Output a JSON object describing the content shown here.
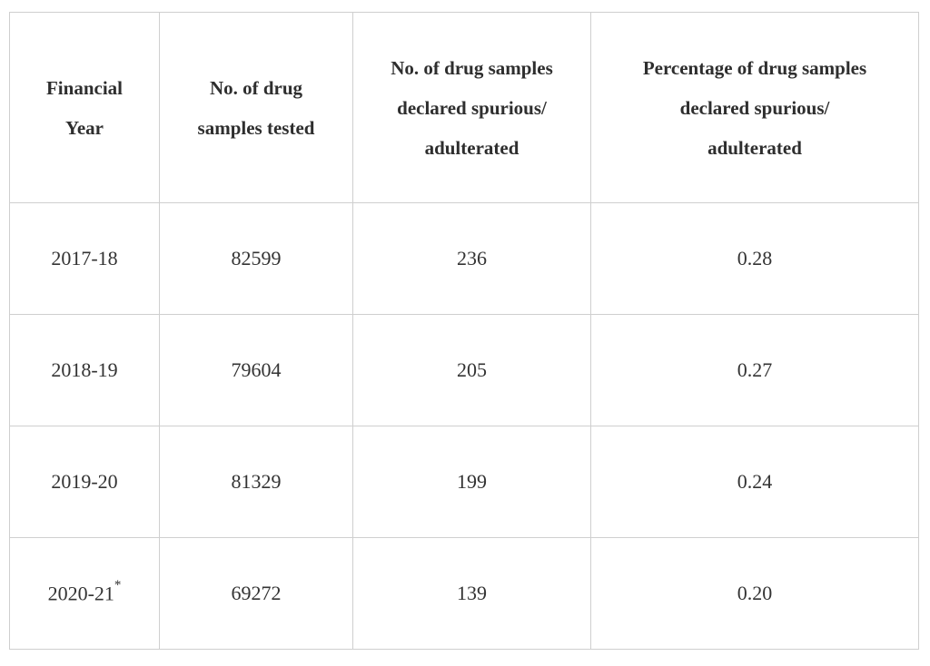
{
  "table": {
    "headers": [
      [
        "Financial",
        "Year"
      ],
      [
        "No. of drug",
        "samples tested"
      ],
      [
        "No. of drug samples",
        "declared spurious/",
        "adulterated"
      ],
      [
        "Percentage of drug samples",
        "declared spurious/",
        "adulterated"
      ]
    ],
    "rows": [
      [
        "2017-18",
        "82599",
        "236",
        "0.28"
      ],
      [
        "2018-19",
        "79604",
        "205",
        "0.27"
      ],
      [
        "2019-20",
        "81329",
        "199",
        "0.24"
      ],
      [
        {
          "text": "2020-21",
          "sup": "*"
        },
        "69272",
        "139",
        "0.20"
      ]
    ]
  }
}
